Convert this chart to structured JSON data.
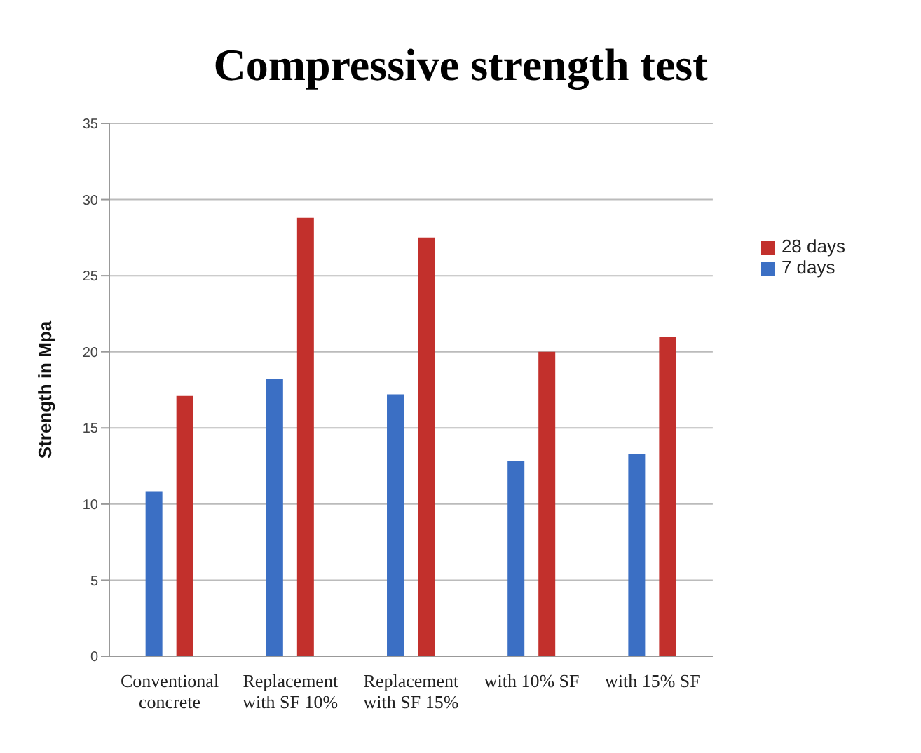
{
  "chart_data": {
    "type": "bar",
    "title": "Compressive strength test",
    "ylabel": "Strength in Mpa",
    "categories": [
      "Conventional concrete",
      "Replacement with SF 10%",
      "Replacement with SF 15%",
      "with 10% SF",
      "with 15% SF"
    ],
    "series": [
      {
        "name": "7 days",
        "color": "#3b6fc4",
        "values": [
          10.8,
          18.2,
          17.2,
          12.8,
          13.3
        ]
      },
      {
        "name": "28 days",
        "color": "#c2302c",
        "values": [
          17.1,
          28.8,
          27.5,
          20,
          21
        ]
      }
    ],
    "ylim": [
      0,
      35
    ],
    "yticks": [
      0,
      5,
      10,
      15,
      20,
      25,
      30,
      35
    ],
    "grid": "y",
    "legend": "top right"
  }
}
